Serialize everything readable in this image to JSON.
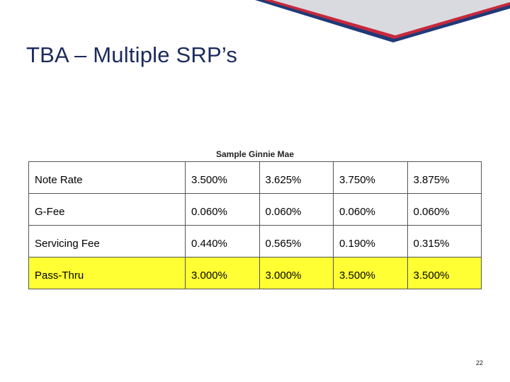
{
  "slide": {
    "title": "TBA – Multiple SRP’s",
    "caption": "Sample Ginnie Mae",
    "page_number": "22"
  },
  "table": {
    "rows": [
      {
        "label": "Note Rate",
        "values": [
          "3.500%",
          "3.625%",
          "3.750%",
          "3.875%"
        ],
        "highlight": false
      },
      {
        "label": "G-Fee",
        "values": [
          "0.060%",
          "0.060%",
          "0.060%",
          "0.060%"
        ],
        "highlight": false
      },
      {
        "label": "Servicing Fee",
        "values": [
          "0.440%",
          "0.565%",
          "0.190%",
          "0.315%"
        ],
        "highlight": false
      },
      {
        "label": "Pass-Thru",
        "values": [
          "3.000%",
          "3.000%",
          "3.500%",
          "3.500%"
        ],
        "highlight": true
      }
    ]
  },
  "colors": {
    "banner_navy": "#1f3a78",
    "banner_red": "#c8283c",
    "banner_gray": "#d9dadf",
    "highlight_yellow": "#ffff33",
    "title_navy": "#1b2a5c"
  }
}
